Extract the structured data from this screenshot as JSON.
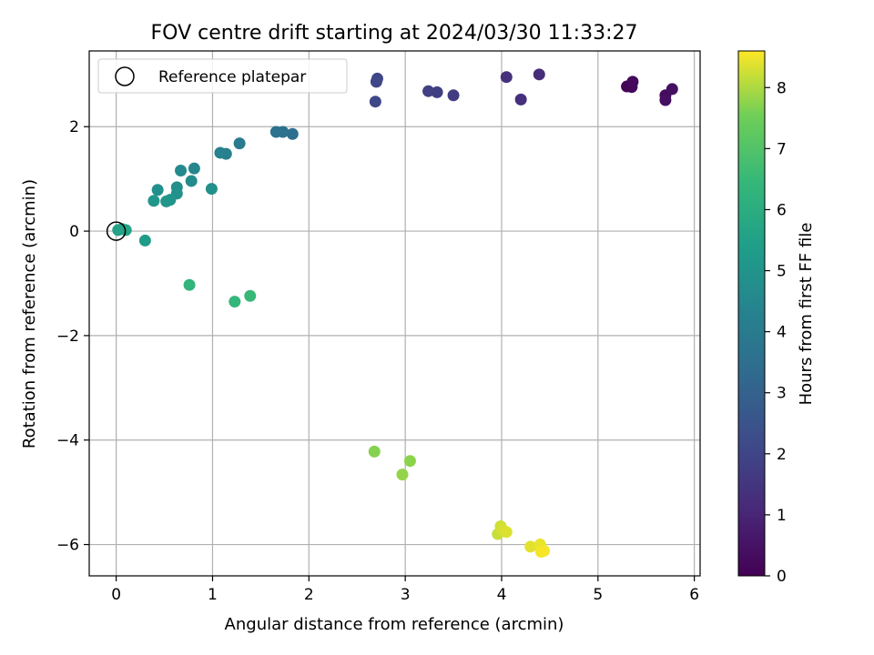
{
  "chart_data": {
    "type": "scatter",
    "title": "FOV centre drift starting at 2024/03/30 11:33:27",
    "xlabel": "Angular distance from reference (arcmin)",
    "ylabel": "Rotation from reference (arcmin)",
    "xlim": [
      -0.28,
      6.06
    ],
    "ylim": [
      -6.6,
      3.45
    ],
    "xticks": [
      0,
      1,
      2,
      3,
      4,
      5,
      6
    ],
    "xtick_labels": [
      "0",
      "1",
      "2",
      "3",
      "4",
      "5",
      "6"
    ],
    "yticks": [
      -6,
      -4,
      -2,
      0,
      2
    ],
    "ytick_labels": [
      "−6",
      "−4",
      "−2",
      "0",
      "2"
    ],
    "grid": true,
    "legend": {
      "placement": "top-left",
      "label": "Reference platepar",
      "marker": "open-circle"
    },
    "reference_point": {
      "x": 0,
      "y": 0
    },
    "colorbar": {
      "label": "Hours from first FF file",
      "colormap": "viridis",
      "range": [
        0,
        8.6
      ],
      "ticks": [
        0,
        1,
        2,
        3,
        4,
        5,
        6,
        7,
        8
      ],
      "tick_labels": [
        "0",
        "1",
        "2",
        "3",
        "4",
        "5",
        "6",
        "7",
        "8"
      ]
    },
    "points": [
      {
        "x": 5.3,
        "y": 2.77,
        "t": 0.1
      },
      {
        "x": 5.35,
        "y": 2.76,
        "t": 0.15
      },
      {
        "x": 5.36,
        "y": 2.86,
        "t": 0.2
      },
      {
        "x": 5.7,
        "y": 2.6,
        "t": 0.3
      },
      {
        "x": 5.7,
        "y": 2.51,
        "t": 0.35
      },
      {
        "x": 5.77,
        "y": 2.72,
        "t": 0.4
      },
      {
        "x": 4.39,
        "y": 3.0,
        "t": 1.2
      },
      {
        "x": 4.2,
        "y": 2.52,
        "t": 1.3
      },
      {
        "x": 4.05,
        "y": 2.95,
        "t": 1.35
      },
      {
        "x": 3.5,
        "y": 2.6,
        "t": 1.7
      },
      {
        "x": 3.33,
        "y": 2.66,
        "t": 1.8
      },
      {
        "x": 3.24,
        "y": 2.68,
        "t": 1.85
      },
      {
        "x": 2.71,
        "y": 2.92,
        "t": 2.0
      },
      {
        "x": 2.7,
        "y": 2.86,
        "t": 2.05
      },
      {
        "x": 2.69,
        "y": 2.48,
        "t": 2.1
      },
      {
        "x": 1.83,
        "y": 1.86,
        "t": 3.5
      },
      {
        "x": 1.73,
        "y": 1.9,
        "t": 3.6
      },
      {
        "x": 1.66,
        "y": 1.9,
        "t": 3.65
      },
      {
        "x": 1.28,
        "y": 1.68,
        "t": 4.0
      },
      {
        "x": 1.14,
        "y": 1.48,
        "t": 4.2
      },
      {
        "x": 1.08,
        "y": 1.5,
        "t": 4.25
      },
      {
        "x": 0.81,
        "y": 1.2,
        "t": 4.5
      },
      {
        "x": 0.67,
        "y": 1.16,
        "t": 4.6
      },
      {
        "x": 0.78,
        "y": 0.96,
        "t": 4.65
      },
      {
        "x": 0.63,
        "y": 0.84,
        "t": 4.75
      },
      {
        "x": 0.43,
        "y": 0.79,
        "t": 4.8
      },
      {
        "x": 0.99,
        "y": 0.81,
        "t": 4.85
      },
      {
        "x": 0.63,
        "y": 0.72,
        "t": 4.9
      },
      {
        "x": 0.56,
        "y": 0.6,
        "t": 5.0
      },
      {
        "x": 0.52,
        "y": 0.57,
        "t": 5.05
      },
      {
        "x": 0.39,
        "y": 0.58,
        "t": 5.1
      },
      {
        "x": 0.3,
        "y": -0.18,
        "t": 5.3
      },
      {
        "x": 0.02,
        "y": 0.02,
        "t": 5.5
      },
      {
        "x": 0.06,
        "y": 0.04,
        "t": 5.55
      },
      {
        "x": 0.1,
        "y": 0.02,
        "t": 5.6
      },
      {
        "x": 0.76,
        "y": -1.03,
        "t": 6.3
      },
      {
        "x": 1.23,
        "y": -1.35,
        "t": 6.4
      },
      {
        "x": 1.39,
        "y": -1.24,
        "t": 6.5
      },
      {
        "x": 2.68,
        "y": -4.22,
        "t": 7.7
      },
      {
        "x": 3.05,
        "y": -4.4,
        "t": 7.75
      },
      {
        "x": 2.97,
        "y": -4.66,
        "t": 7.8
      },
      {
        "x": 3.96,
        "y": -5.8,
        "t": 8.2
      },
      {
        "x": 3.99,
        "y": -5.65,
        "t": 8.25
      },
      {
        "x": 4.01,
        "y": -5.72,
        "t": 8.3
      },
      {
        "x": 4.05,
        "y": -5.76,
        "t": 8.35
      },
      {
        "x": 4.3,
        "y": -6.04,
        "t": 8.4
      },
      {
        "x": 4.4,
        "y": -6.0,
        "t": 8.45
      },
      {
        "x": 4.41,
        "y": -6.14,
        "t": 8.5
      },
      {
        "x": 4.44,
        "y": -6.12,
        "t": 8.55
      }
    ]
  }
}
